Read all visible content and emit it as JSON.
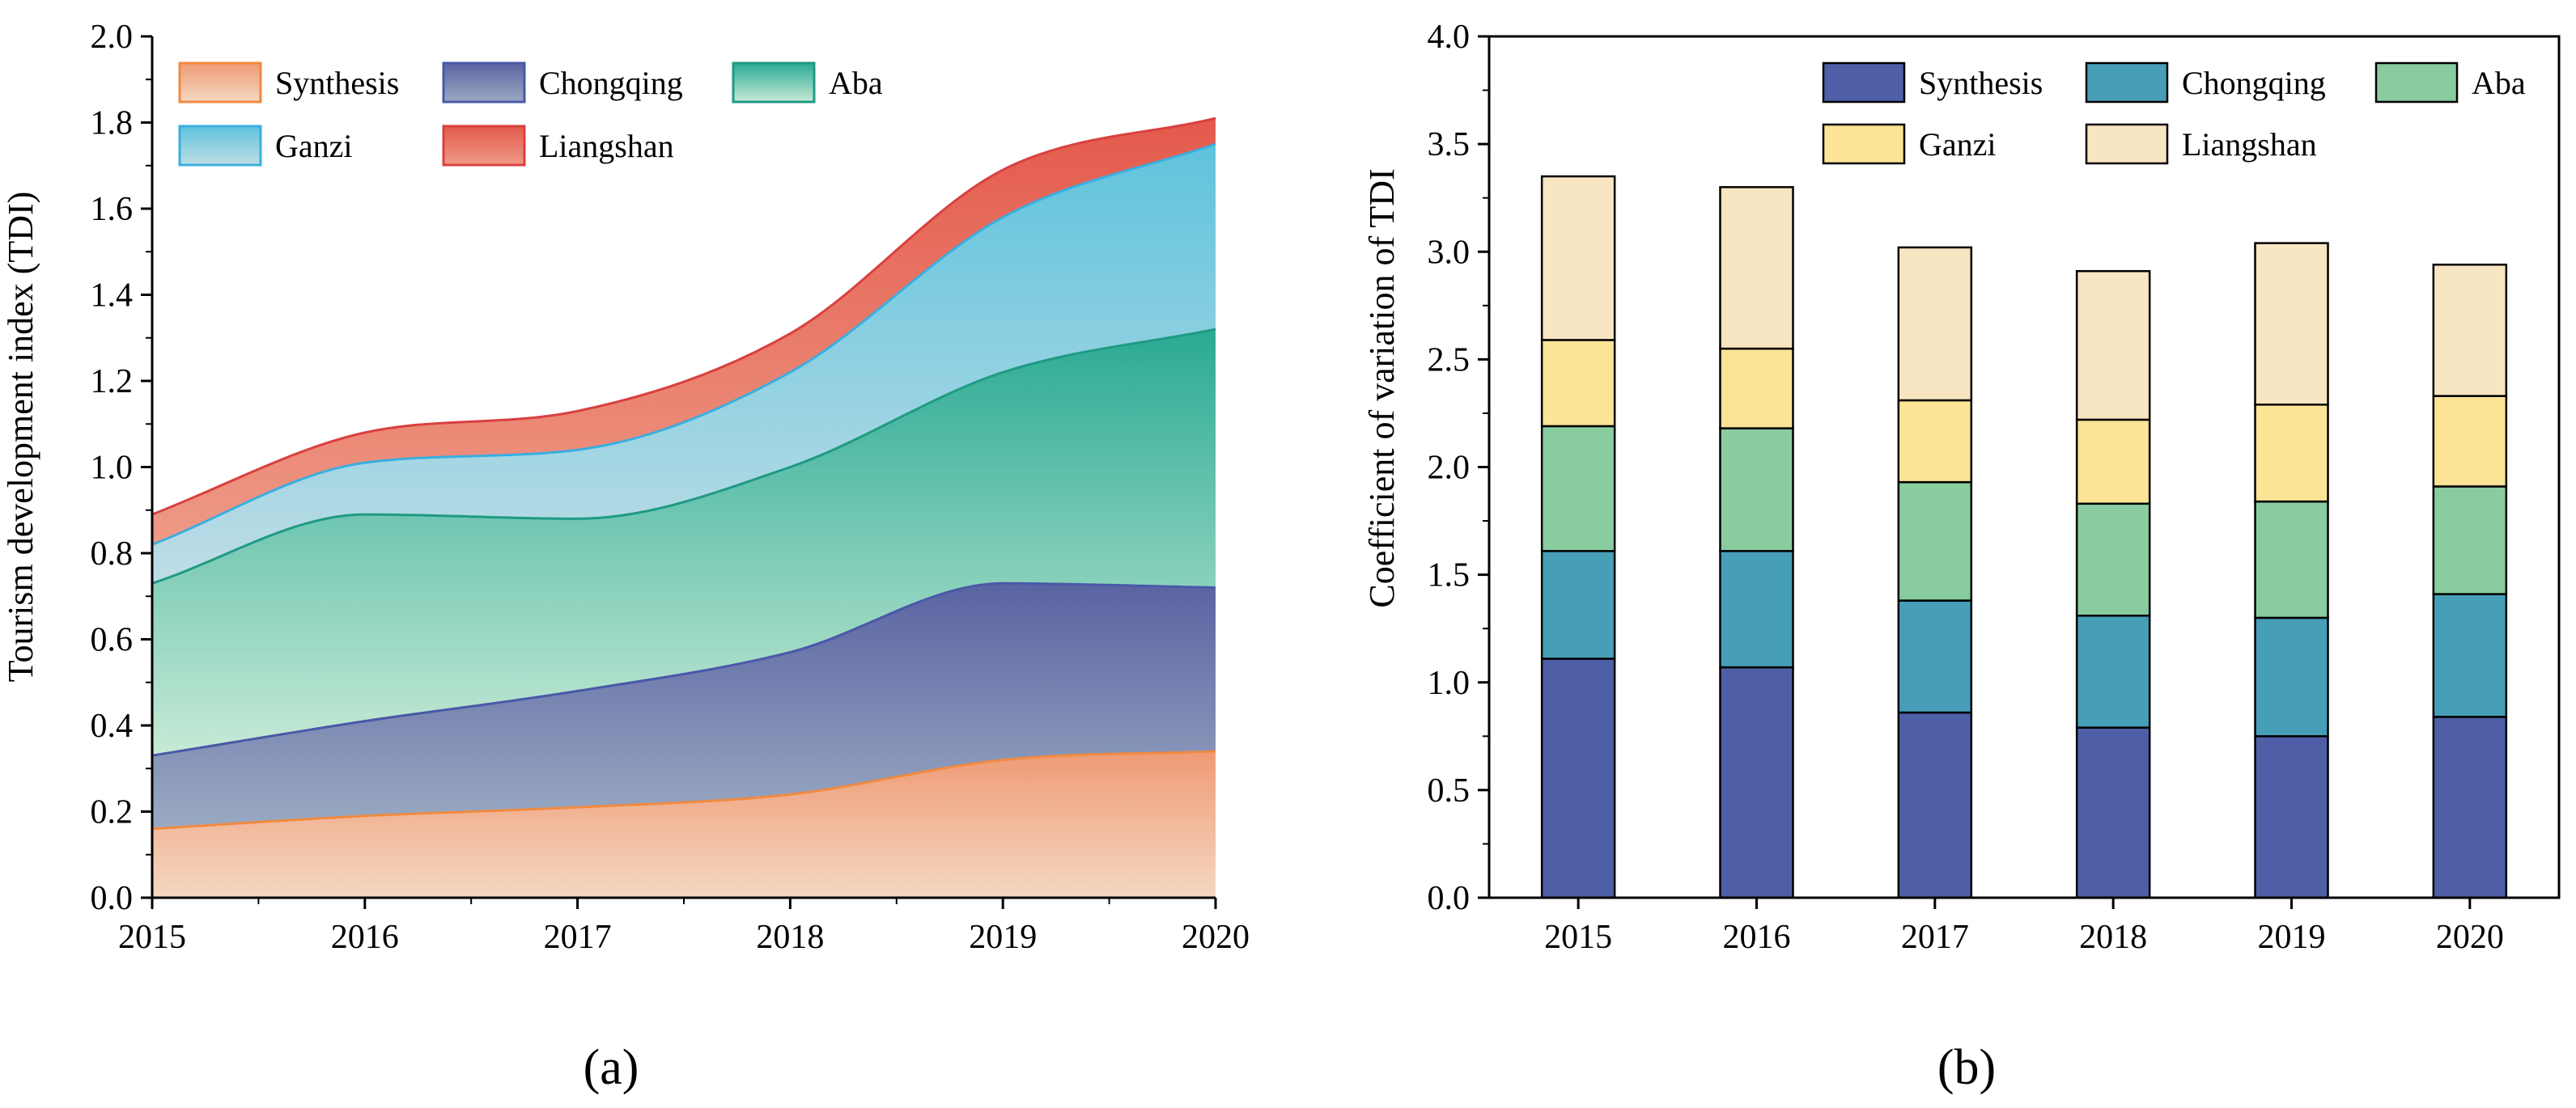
{
  "chart_data": [
    {
      "type": "area",
      "stacked": true,
      "panel_label": "(a)",
      "ylabel": "Tourism development index (TDI)",
      "xlabel": "",
      "x": [
        2015,
        2016,
        2017,
        2018,
        2019,
        2020
      ],
      "xticks": [
        "2015",
        "2016",
        "2017",
        "2018",
        "2019",
        "2020"
      ],
      "ylim": [
        0,
        2.0
      ],
      "yticks": [
        "0.0",
        "0.2",
        "0.4",
        "0.6",
        "0.8",
        "1.0",
        "1.2",
        "1.4",
        "1.6",
        "1.8",
        "2.0"
      ],
      "legend_position": "top-left",
      "series": [
        {
          "name": "Synthesis",
          "values": [
            0.16,
            0.19,
            0.21,
            0.24,
            0.32,
            0.34
          ],
          "fill_top": "#ef9a74",
          "fill_bottom": "#f4d8c2",
          "line": "#f08a40"
        },
        {
          "name": "Chongqing",
          "values": [
            0.17,
            0.22,
            0.27,
            0.33,
            0.41,
            0.38
          ],
          "fill_top": "#5a63a2",
          "fill_bottom": "#9aaac2",
          "line": "#4a58a8"
        },
        {
          "name": "Aba",
          "values": [
            0.4,
            0.48,
            0.4,
            0.43,
            0.49,
            0.6
          ],
          "fill_top": "#2aaa94",
          "fill_bottom": "#c7ead6",
          "line": "#1f9a84"
        },
        {
          "name": "Ganzi",
          "values": [
            0.09,
            0.12,
            0.16,
            0.22,
            0.36,
            0.43
          ],
          "fill_top": "#5fc3dc",
          "fill_bottom": "#bfdde6",
          "line": "#3aaee0"
        },
        {
          "name": "Liangshan",
          "values": [
            0.07,
            0.07,
            0.09,
            0.09,
            0.11,
            0.06
          ],
          "fill_top": "#e45a4c",
          "fill_bottom": "#ee9a86",
          "line": "#d94040"
        }
      ]
    },
    {
      "type": "bar",
      "stacked": true,
      "panel_label": "(b)",
      "ylabel": "Coefficient of variation of TDI",
      "xlabel": "",
      "categories": [
        "2015",
        "2016",
        "2017",
        "2018",
        "2019",
        "2020"
      ],
      "ylim": [
        0,
        4.0
      ],
      "yticks": [
        "0.0",
        "0.5",
        "1.0",
        "1.5",
        "2.0",
        "2.5",
        "3.0",
        "3.5",
        "4.0"
      ],
      "legend_position": "top-right",
      "series": [
        {
          "name": "Synthesis",
          "values": [
            1.11,
            1.07,
            0.86,
            0.79,
            0.75,
            0.84
          ],
          "color": "#4e5fa8"
        },
        {
          "name": "Chongqing",
          "values": [
            0.5,
            0.54,
            0.52,
            0.52,
            0.55,
            0.57
          ],
          "color": "#469eb7"
        },
        {
          "name": "Aba",
          "values": [
            0.58,
            0.57,
            0.55,
            0.52,
            0.54,
            0.5
          ],
          "color": "#88cca0"
        },
        {
          "name": "Ganzi",
          "values": [
            0.4,
            0.37,
            0.38,
            0.39,
            0.45,
            0.42
          ],
          "color": "#fbe496"
        },
        {
          "name": "Liangshan",
          "values": [
            0.76,
            0.75,
            0.71,
            0.69,
            0.75,
            0.61
          ],
          "color": "#f8e5c1"
        }
      ]
    }
  ]
}
